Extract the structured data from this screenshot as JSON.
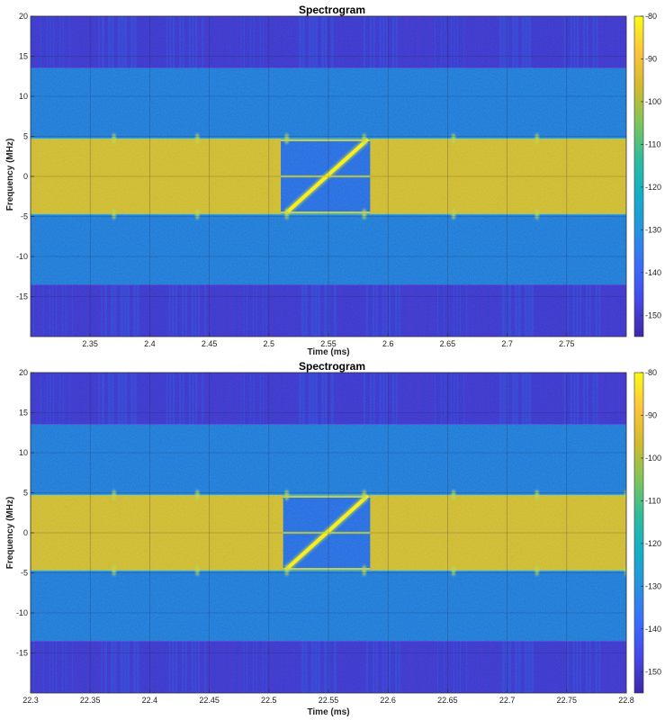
{
  "colors": {
    "band_outer": "#3a4fe0",
    "band_mid": "#2a86e0",
    "band_center": "#e9b93c",
    "signal": "#f5ea2a",
    "colormap": [
      "#3e26a8",
      "#4548e6",
      "#3a6dfc",
      "#2593e1",
      "#13b0c6",
      "#2fbd9c",
      "#7ec55a",
      "#d1ba2e",
      "#fcc43c",
      "#f9fb15"
    ]
  },
  "chart_data": [
    {
      "type": "heatmap",
      "title": "Spectrogram",
      "xlabel": "Time (ms)",
      "ylabel": "Frequency (MHz)",
      "xlim": [
        2.3,
        2.8
      ],
      "ylim": [
        -20,
        20
      ],
      "x_ticks": [
        2.35,
        2.4,
        2.45,
        2.5,
        2.55,
        2.6,
        2.65,
        2.7,
        2.75
      ],
      "x_tick_labels": [
        "2.35",
        "2.4",
        "2.45",
        "2.5",
        "2.55",
        "2.6",
        "2.65",
        "2.7",
        "2.75"
      ],
      "y_ticks": [
        20,
        15,
        10,
        5,
        0,
        -5,
        -10,
        -15
      ],
      "y_tick_labels": [
        "20",
        "15",
        "10",
        "5",
        "0",
        "-5",
        "-10",
        "-15"
      ],
      "grid": true,
      "colorbar": {
        "range": [
          -155,
          -80
        ],
        "ticks": [
          -80,
          -90,
          -100,
          -110,
          -120,
          -130,
          -140,
          -150
        ],
        "tick_labels": [
          "-80",
          "-90",
          "-100",
          "-110",
          "-120",
          "-130",
          "-140",
          "-150"
        ]
      },
      "bands": [
        {
          "f_range": [
            13.5,
            20
          ],
          "level_dB": -148
        },
        {
          "f_range": [
            4.7,
            13.5
          ],
          "level_dB": -132
        },
        {
          "f_range": [
            -4.7,
            4.7
          ],
          "level_dB": -97
        },
        {
          "f_range": [
            -13.5,
            -4.7
          ],
          "level_dB": -132
        },
        {
          "f_range": [
            -20,
            -13.5
          ],
          "level_dB": -148
        }
      ],
      "gap": {
        "t_range": [
          2.51,
          2.585
        ],
        "f_range": [
          -4.7,
          4.7
        ],
        "level_dB": -135
      },
      "chirp": {
        "t_start": 2.515,
        "f_start": -4.5,
        "t_end": 2.582,
        "f_end": 4.5,
        "level_dB": -82
      },
      "tones": [
        4.5,
        0,
        -4.5
      ],
      "markers": [
        2.37,
        2.44,
        2.515,
        2.58,
        2.655,
        2.725
      ]
    },
    {
      "type": "heatmap",
      "title": "Spectrogram",
      "xlabel": "Time (ms)",
      "ylabel": "Frequency (MHz)",
      "xlim": [
        22.3,
        22.8
      ],
      "ylim": [
        -20,
        20
      ],
      "x_ticks": [
        22.3,
        22.35,
        22.4,
        22.45,
        22.5,
        22.55,
        22.6,
        22.65,
        22.7,
        22.75,
        22.8
      ],
      "x_tick_labels": [
        "22.3",
        "22.35",
        "22.4",
        "22.45",
        "22.5",
        "22.55",
        "22.6",
        "22.65",
        "22.7",
        "22.75",
        "22.8"
      ],
      "y_ticks": [
        20,
        15,
        10,
        5,
        0,
        -5,
        -10,
        -15
      ],
      "y_tick_labels": [
        "20",
        "15",
        "10",
        "5",
        "0",
        "-5",
        "-10",
        "-15"
      ],
      "grid": true,
      "colorbar": {
        "range": [
          -155,
          -80
        ],
        "ticks": [
          -80,
          -90,
          -100,
          -110,
          -120,
          -130,
          -140,
          -150
        ],
        "tick_labels": [
          "-80",
          "-90",
          "-100",
          "-110",
          "-120",
          "-130",
          "-140",
          "-150"
        ]
      },
      "bands": [
        {
          "f_range": [
            13.5,
            20
          ],
          "level_dB": -148
        },
        {
          "f_range": [
            4.7,
            13.5
          ],
          "level_dB": -132
        },
        {
          "f_range": [
            -4.7,
            4.7
          ],
          "level_dB": -97
        },
        {
          "f_range": [
            -13.5,
            -4.7
          ],
          "level_dB": -132
        },
        {
          "f_range": [
            -20,
            -13.5
          ],
          "level_dB": -148
        }
      ],
      "gap": {
        "t_range": [
          22.512,
          22.585
        ],
        "f_range": [
          -4.7,
          4.7
        ],
        "level_dB": -135
      },
      "chirp": {
        "t_start": 22.515,
        "f_start": -4.5,
        "t_end": 22.582,
        "f_end": 4.5,
        "level_dB": -82
      },
      "tones": [
        4.5,
        0,
        -4.5
      ],
      "markers": [
        22.37,
        22.44,
        22.515,
        22.58,
        22.655,
        22.725,
        22.8
      ]
    }
  ]
}
